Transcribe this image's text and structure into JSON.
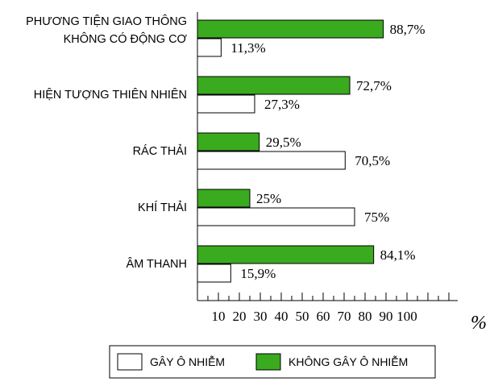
{
  "chart_data": {
    "type": "bar",
    "orientation": "horizontal",
    "categories": [
      [
        "PHƯƠNG TIỆN GIAO THÔNG",
        "KHÔNG CÓ ĐỘNG CƠ"
      ],
      [
        "HIỆN TƯỢNG THIÊN NHIÊN"
      ],
      [
        "RÁC THẢI"
      ],
      [
        "KHÍ THẢI"
      ],
      [
        "ÂM THANH"
      ]
    ],
    "series": [
      {
        "name": "KHÔNG GÂY Ô NHIỄM",
        "color": "#3aaa1f",
        "values": [
          88.7,
          72.7,
          29.5,
          25,
          84.1
        ],
        "labels": [
          "88,7%",
          "72,7%",
          "29,5%",
          "25%",
          "84,1%"
        ]
      },
      {
        "name": "GÂY Ô NHIỄM",
        "color": "#ffffff",
        "values": [
          11.3,
          27.3,
          70.5,
          75,
          15.9
        ],
        "labels": [
          "11,3%",
          "27,3%",
          "70,5%",
          "75%",
          "15,9%"
        ]
      }
    ],
    "xlim": [
      0,
      100
    ],
    "xticks": [
      "10",
      "20",
      "30",
      "40",
      "50",
      "60",
      "70",
      "80",
      "90",
      "100"
    ],
    "xlabel": "%",
    "legend_order": [
      "GÂY Ô NHIỄM",
      "KHÔNG GÂY Ô NHIỄM"
    ],
    "legend_position": "bottom",
    "grid": false
  }
}
